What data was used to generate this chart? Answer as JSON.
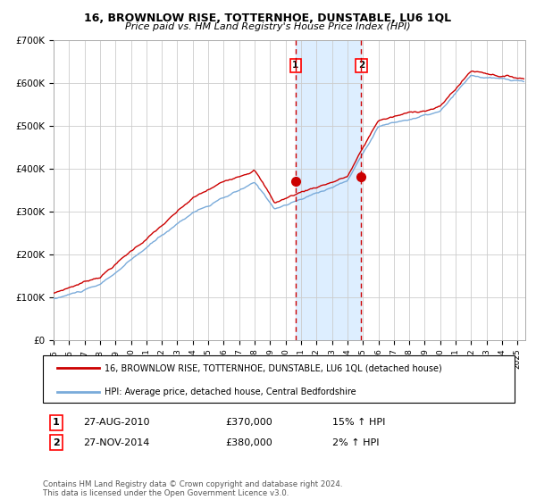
{
  "title": "16, BROWNLOW RISE, TOTTERNHOE, DUNSTABLE, LU6 1QL",
  "subtitle": "Price paid vs. HM Land Registry's House Price Index (HPI)",
  "legend_line1": "16, BROWNLOW RISE, TOTTERNHOE, DUNSTABLE, LU6 1QL (detached house)",
  "legend_line2": "HPI: Average price, detached house, Central Bedfordshire",
  "transaction1_label": "1",
  "transaction1_date": "27-AUG-2010",
  "transaction1_price": "£370,000",
  "transaction1_hpi": "15% ↑ HPI",
  "transaction1_x": 2010.65,
  "transaction1_y": 370000,
  "transaction2_label": "2",
  "transaction2_date": "27-NOV-2014",
  "transaction2_price": "£380,000",
  "transaction2_hpi": "2% ↑ HPI",
  "transaction2_x": 2014.9,
  "transaction2_y": 380000,
  "shaded_xmin": 2010.65,
  "shaded_xmax": 2014.9,
  "xmin": 1995,
  "xmax": 2025.5,
  "ymin": 0,
  "ymax": 700000,
  "yticks": [
    0,
    100000,
    200000,
    300000,
    400000,
    500000,
    600000,
    700000
  ],
  "ytick_labels": [
    "£0",
    "£100K",
    "£200K",
    "£300K",
    "£400K",
    "£500K",
    "£600K",
    "£700K"
  ],
  "red_color": "#cc0000",
  "blue_color": "#7aabda",
  "shaded_color": "#ddeeff",
  "background_color": "#ffffff",
  "grid_color": "#cccccc",
  "footnote": "Contains HM Land Registry data © Crown copyright and database right 2024.\nThis data is licensed under the Open Government Licence v3.0."
}
